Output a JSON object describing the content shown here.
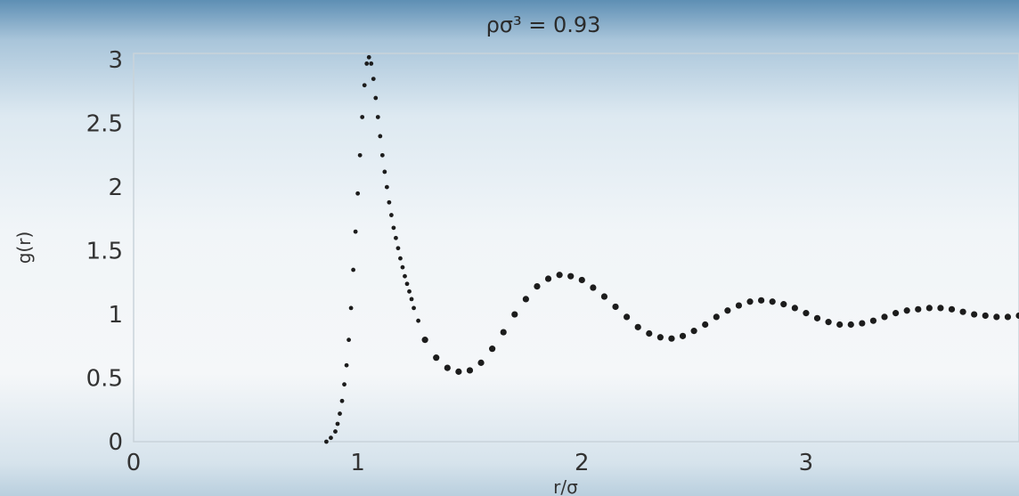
{
  "chart_data": {
    "type": "scatter",
    "title": "ρσ³ = 0.93",
    "xlabel": "r/σ",
    "ylabel": "g(r)",
    "xlim": [
      0,
      3.95
    ],
    "ylim": [
      0,
      3.05
    ],
    "x_ticks": [
      "0",
      "1",
      "2",
      "3"
    ],
    "y_ticks": [
      "0",
      "0.5",
      "1",
      "1.5",
      "2",
      "2.5",
      "3"
    ],
    "grid": false,
    "series": [
      {
        "x": [
          0.86,
          0.88,
          0.9,
          0.91,
          0.92,
          0.93,
          0.94,
          0.95,
          0.96,
          0.97,
          0.98,
          0.99,
          1.0,
          1.01,
          1.02,
          1.03,
          1.04,
          1.05,
          1.06,
          1.07,
          1.08,
          1.09,
          1.1,
          1.11,
          1.12,
          1.13,
          1.14,
          1.15,
          1.16,
          1.17,
          1.18,
          1.19,
          1.2,
          1.21,
          1.22,
          1.23,
          1.24,
          1.25,
          1.27,
          1.3,
          1.35,
          1.4,
          1.45,
          1.5,
          1.55,
          1.6,
          1.65,
          1.7,
          1.75,
          1.8,
          1.85,
          1.9,
          1.95,
          2.0,
          2.05,
          2.1,
          2.15,
          2.2,
          2.25,
          2.3,
          2.35,
          2.4,
          2.45,
          2.5,
          2.55,
          2.6,
          2.65,
          2.7,
          2.75,
          2.8,
          2.85,
          2.9,
          2.95,
          3.0,
          3.05,
          3.1,
          3.15,
          3.2,
          3.25,
          3.3,
          3.35,
          3.4,
          3.45,
          3.5,
          3.55,
          3.6,
          3.65,
          3.7,
          3.75,
          3.8,
          3.85,
          3.9,
          3.95
        ],
        "y": [
          0.0,
          0.03,
          0.08,
          0.14,
          0.22,
          0.32,
          0.45,
          0.6,
          0.8,
          1.05,
          1.35,
          1.65,
          1.95,
          2.25,
          2.55,
          2.8,
          2.97,
          3.02,
          2.97,
          2.85,
          2.7,
          2.55,
          2.4,
          2.25,
          2.12,
          2.0,
          1.88,
          1.78,
          1.68,
          1.6,
          1.52,
          1.44,
          1.37,
          1.3,
          1.24,
          1.18,
          1.12,
          1.05,
          0.95,
          0.8,
          0.66,
          0.58,
          0.55,
          0.56,
          0.62,
          0.73,
          0.86,
          1.0,
          1.12,
          1.22,
          1.28,
          1.31,
          1.3,
          1.27,
          1.21,
          1.14,
          1.06,
          0.98,
          0.9,
          0.85,
          0.82,
          0.81,
          0.83,
          0.87,
          0.92,
          0.98,
          1.03,
          1.07,
          1.1,
          1.11,
          1.1,
          1.08,
          1.05,
          1.01,
          0.97,
          0.94,
          0.92,
          0.92,
          0.93,
          0.95,
          0.98,
          1.01,
          1.03,
          1.04,
          1.05,
          1.05,
          1.04,
          1.02,
          1.0,
          0.99,
          0.98,
          0.98,
          0.99
        ]
      }
    ]
  }
}
